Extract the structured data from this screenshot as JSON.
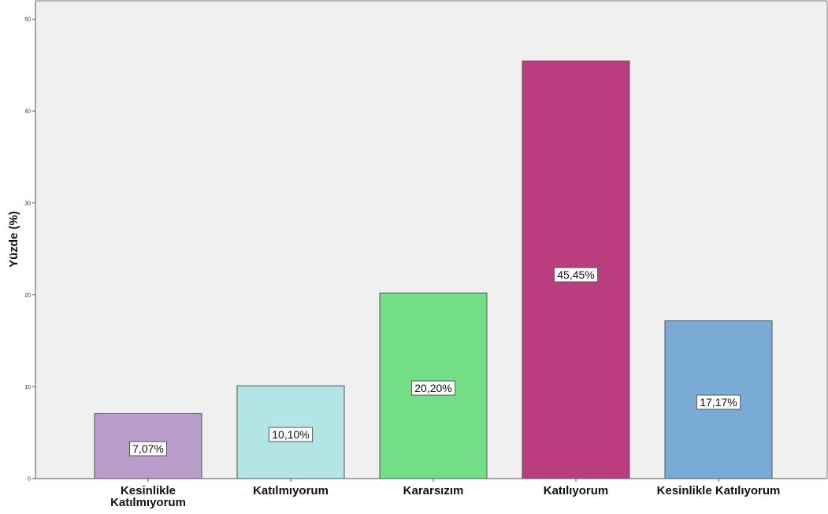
{
  "chart_data": {
    "type": "bar",
    "title": "",
    "xlabel": "",
    "ylabel": "Yüzde (%)",
    "ylim": [
      0,
      52
    ],
    "yticks": [
      0,
      10,
      20,
      30,
      40,
      50
    ],
    "grid": false,
    "categories": [
      "Kesinlikle\nKatılmıyorum",
      "Katılmıyorum",
      "Kararsızım",
      "Katılıyorum",
      "Kesinlikle Katılıyorum"
    ],
    "values": [
      7.07,
      10.1,
      20.2,
      45.45,
      17.17
    ],
    "data_labels": [
      "7,07%",
      "10,10%",
      "20,20%",
      "45,45%",
      "17,17%"
    ],
    "colors": [
      "#b89cc9",
      "#b3e5e7",
      "#72de86",
      "#ba3d7f",
      "#7aaad6"
    ],
    "plot_background": "#f0f0f0"
  }
}
